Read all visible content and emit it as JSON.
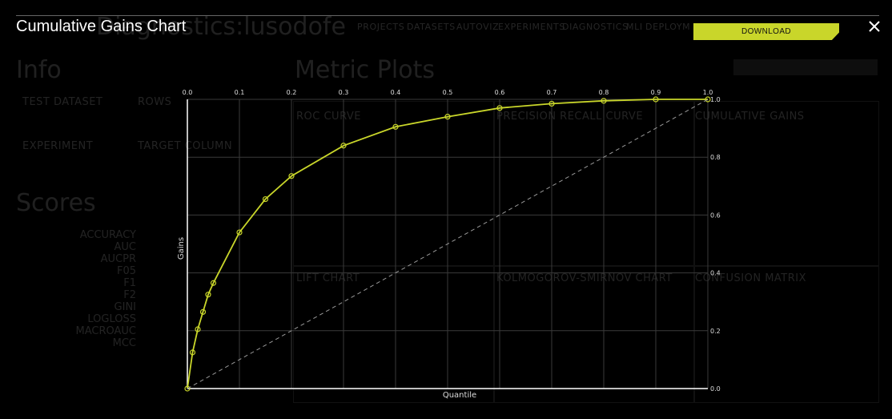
{
  "background": {
    "page_title": "Diagnostics:lusodofe",
    "nav": [
      "PROJECTS",
      "DATASETS",
      "AUTOVIZ",
      "EXPERIMENTS",
      "DIAGNOSTICS",
      "MLI",
      "DEPLOYM"
    ],
    "info_heading": "Info",
    "metric_plots_heading": "Metric Plots",
    "scores_heading": "Scores",
    "test_dataset_label": "TEST DATASET",
    "rows_label": "ROWS",
    "experiment_label": "EXPERIMENT",
    "target_column_label": "TARGET COLUMN",
    "score_labels": [
      "ACCURACY",
      "AUC",
      "AUCPR",
      "F05",
      "F1",
      "F2",
      "GINI",
      "LOGLOSS",
      "MACROAUC",
      "MCC"
    ],
    "plot_titles": [
      "ROC CURVE",
      "PRECISION RECALL CURVE",
      "CUMULATIVE GAINS",
      "LIFT CHART",
      "KOLMOGOROV-SMIRNOV CHART",
      "CONFUSION MATRIX"
    ]
  },
  "modal": {
    "title": "Cumulative Gains Chart",
    "download_label": "DOWNLOAD",
    "close_icon": "close-icon"
  },
  "colors": {
    "accent": "#c9d62a",
    "background": "#000000"
  },
  "chart_data": {
    "type": "line",
    "title": "",
    "xlabel": "Quantile",
    "ylabel": "Gains",
    "xlim": [
      0,
      1
    ],
    "ylim": [
      0,
      1
    ],
    "x_ticks": [
      "0.0",
      "0.1",
      "0.2",
      "0.3",
      "0.4",
      "0.5",
      "0.6",
      "0.7",
      "0.8",
      "0.9",
      "1.0"
    ],
    "y_ticks": [
      "0.0",
      "0.2",
      "0.4",
      "0.6",
      "0.8",
      "1.0"
    ],
    "x_axis_position": "top",
    "y_axis_position": "right",
    "grid": true,
    "series": [
      {
        "x": [
          0,
          0.01,
          0.02,
          0.03,
          0.04,
          0.05,
          0.1,
          0.15,
          0.2,
          0.3,
          0.4,
          0.5,
          0.6,
          0.7,
          0.8,
          0.9,
          1.0
        ],
        "y": [
          0,
          0.125,
          0.205,
          0.265,
          0.325,
          0.365,
          0.54,
          0.655,
          0.735,
          0.84,
          0.905,
          0.94,
          0.97,
          0.985,
          0.995,
          1.0,
          1.0
        ]
      },
      {
        "x": [
          0,
          1
        ],
        "y": [
          0,
          1
        ],
        "style": "dashed"
      }
    ]
  }
}
